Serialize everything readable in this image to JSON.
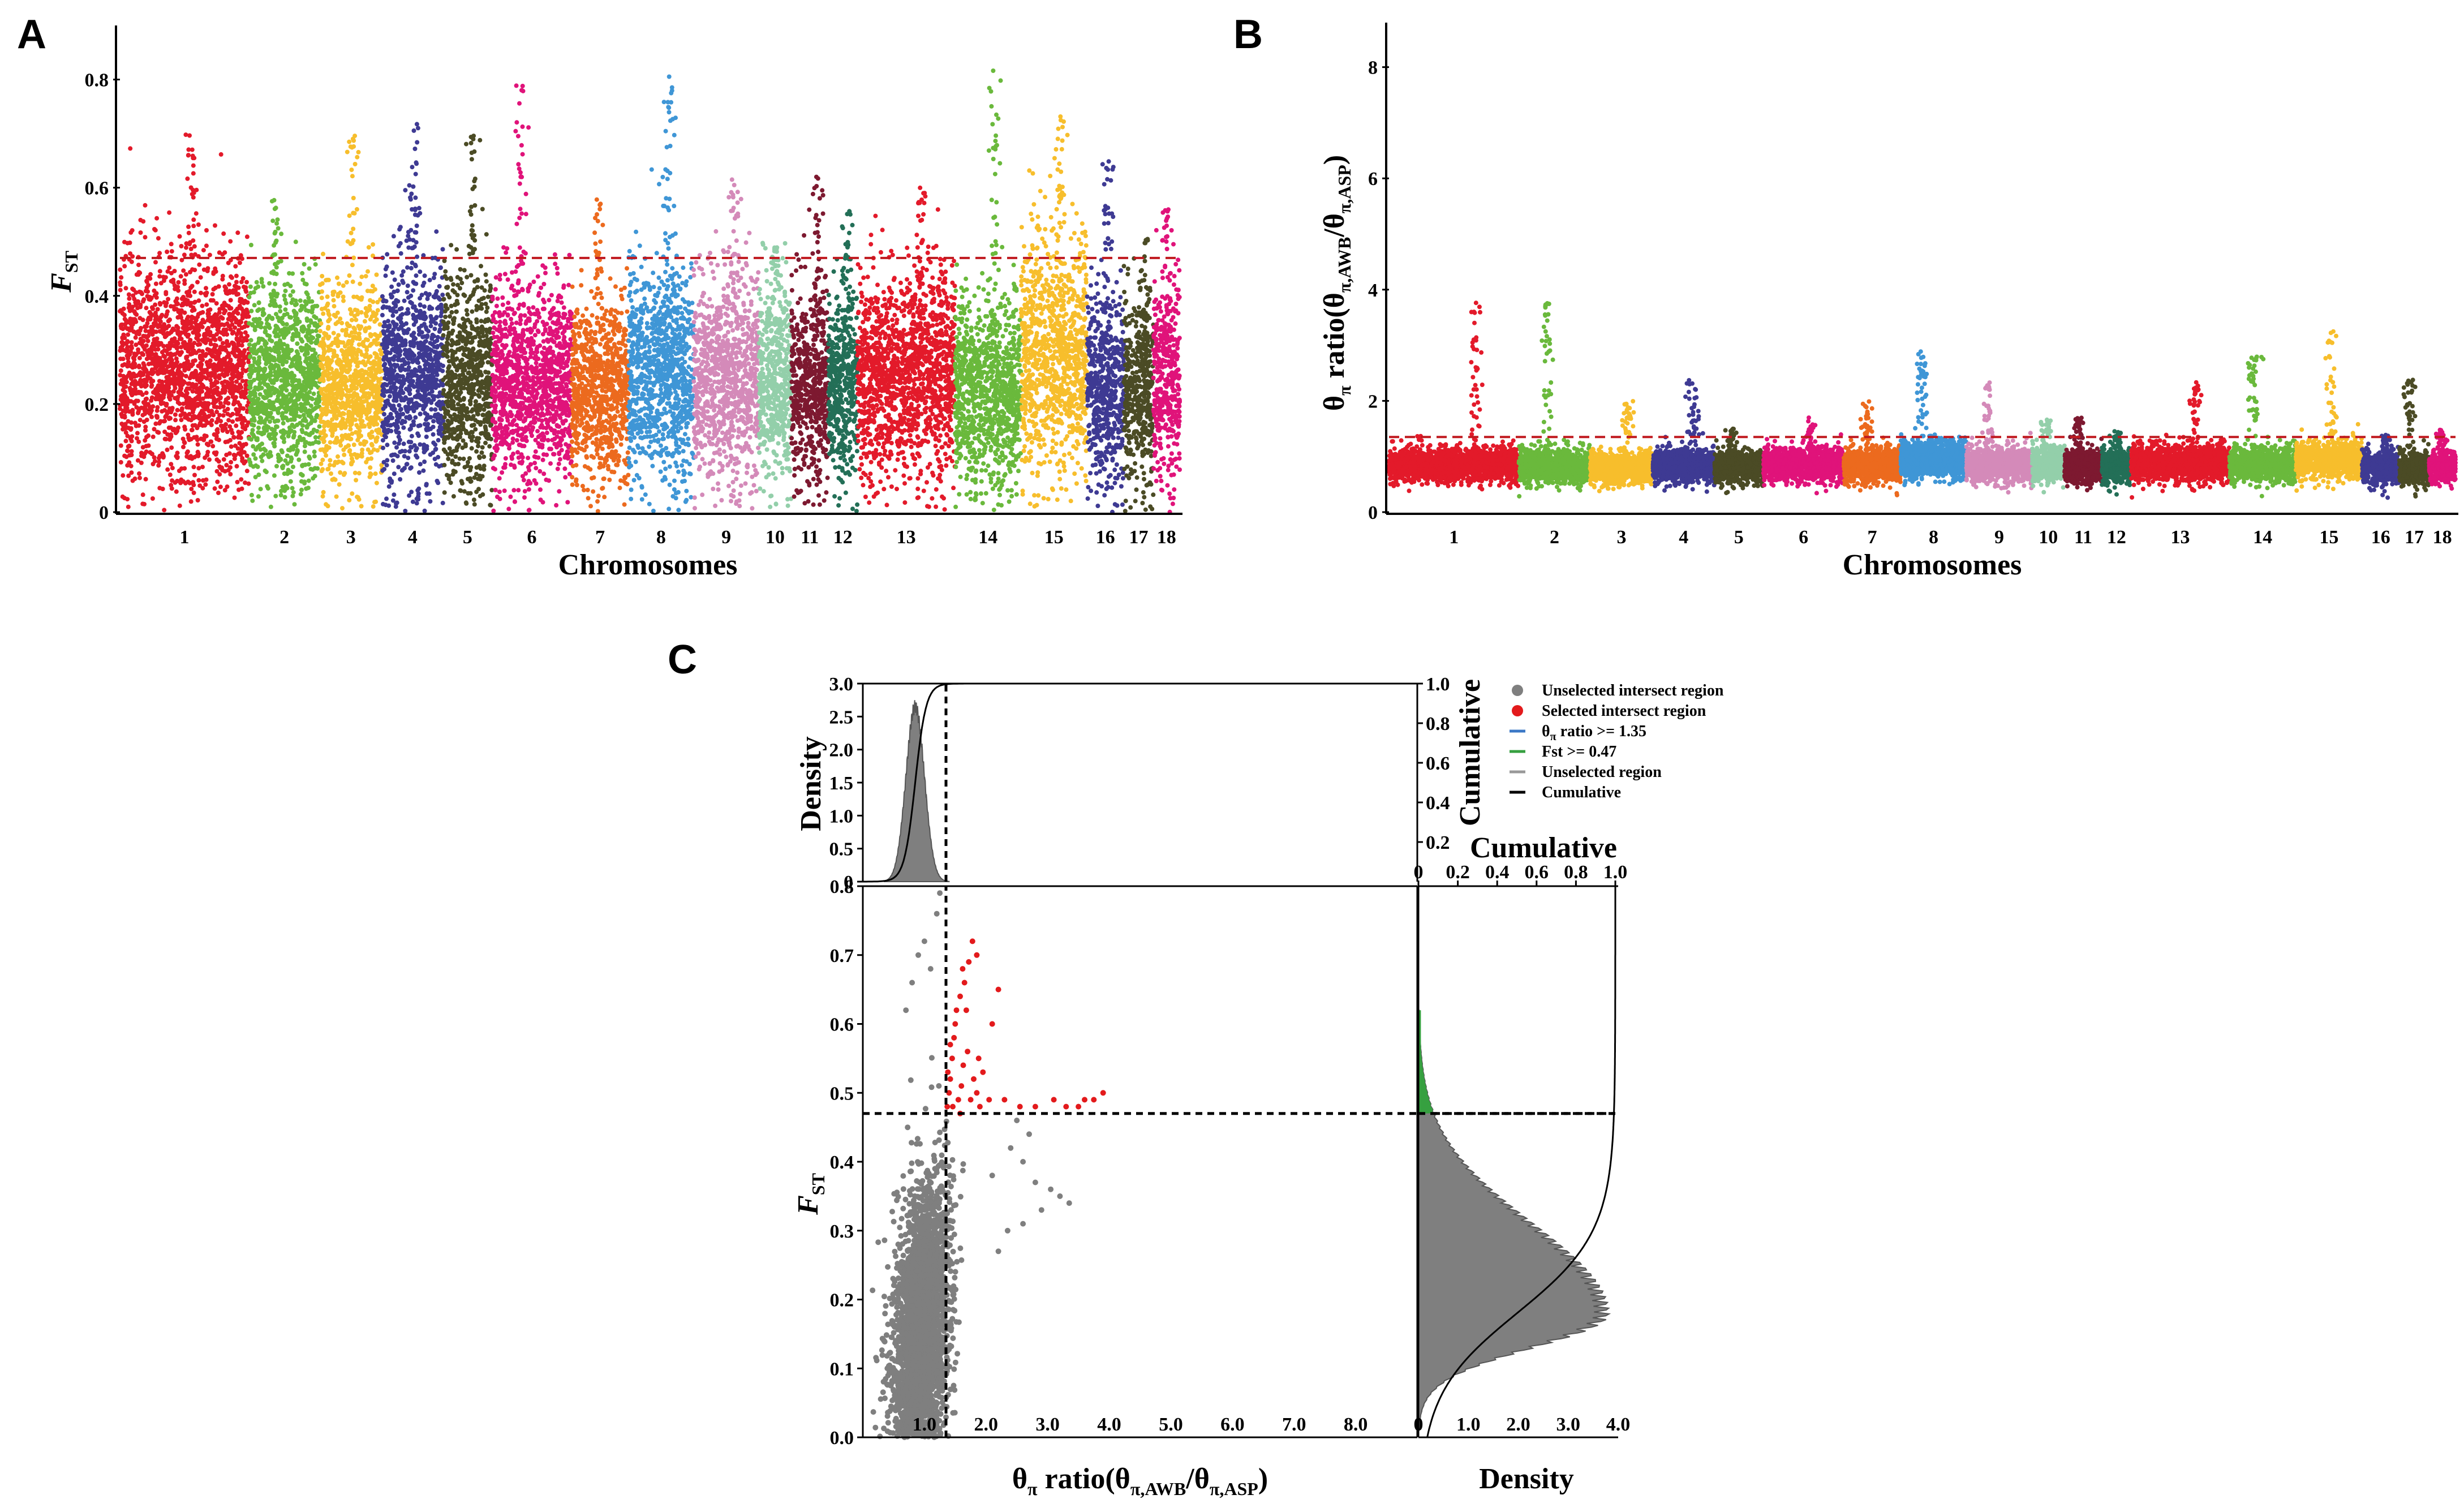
{
  "figure": {
    "panel_labels": [
      "A",
      "B",
      "C"
    ]
  },
  "colors": {
    "chromosome_palette": [
      "#e31a2a",
      "#6ab93c",
      "#f7be2c",
      "#3e3a93",
      "#4b4b25",
      "#e0137a",
      "#ec6a1e",
      "#3f96d6",
      "#d48ab9",
      "#93cfaa",
      "#7d1930",
      "#236f57"
    ],
    "threshold_line": "#c0191f",
    "gray": "#7f7f7f",
    "selected_red": "#e31a1c",
    "theta_blue": "#3b78c6",
    "fst_green": "#36a040"
  },
  "chart_data": [
    {
      "id": "A",
      "type": "scatter",
      "subtype": "manhattan",
      "xlabel": "Chromosomes",
      "ylabel_main": "F",
      "ylabel_sub": "ST",
      "ylim": [
        0,
        0.9
      ],
      "yticks": [
        "0",
        "0.2",
        "0.4",
        "0.6",
        "0.8"
      ],
      "threshold": 0.47,
      "chromosomes": [
        "1",
        "2",
        "3",
        "4",
        "5",
        "6",
        "7",
        "8",
        "9",
        "10",
        "11",
        "12",
        "13",
        "14",
        "15",
        "16",
        "17",
        "18"
      ],
      "chrom_lengths": [
        275,
        151,
        133,
        130,
        104,
        170,
        121,
        139,
        139,
        69,
        79,
        62,
        208,
        141,
        140,
        79,
        63,
        56
      ],
      "chrom_typical": [
        0.27,
        0.24,
        0.23,
        0.26,
        0.25,
        0.24,
        0.22,
        0.26,
        0.25,
        0.24,
        0.23,
        0.23,
        0.25,
        0.22,
        0.29,
        0.23,
        0.23,
        0.24
      ],
      "chrom_peak": [
        0.7,
        0.58,
        0.7,
        0.72,
        0.7,
        0.8,
        0.58,
        0.81,
        0.63,
        0.5,
        0.62,
        0.56,
        0.62,
        0.82,
        0.74,
        0.65,
        0.51,
        0.56
      ]
    },
    {
      "id": "B",
      "type": "scatter",
      "subtype": "manhattan",
      "xlabel": "Chromosomes",
      "ylabel_main": "θ",
      "ylabel_sub1": "π",
      "ylabel_mid": " ratio(θ",
      "ylabel_sub2": "π,AWB",
      "ylabel_mid2": "/θ",
      "ylabel_sub3": "π,ASP",
      "ylabel_end": ")",
      "ylim": [
        0,
        8.8
      ],
      "yticks": [
        "0",
        "2",
        "4",
        "6",
        "8"
      ],
      "threshold": 1.35,
      "chromosomes": [
        "1",
        "2",
        "3",
        "4",
        "5",
        "6",
        "7",
        "8",
        "9",
        "10",
        "11",
        "12",
        "13",
        "14",
        "15",
        "16",
        "17",
        "18"
      ],
      "chrom_lengths": [
        275,
        151,
        133,
        130,
        104,
        170,
        121,
        139,
        139,
        69,
        79,
        62,
        208,
        141,
        140,
        79,
        63,
        56
      ],
      "chrom_typical": [
        0.85,
        0.82,
        0.8,
        0.84,
        0.82,
        0.85,
        0.84,
        0.95,
        0.85,
        0.85,
        0.82,
        0.82,
        0.88,
        0.85,
        0.95,
        0.8,
        0.8,
        0.8
      ],
      "chrom_peak": [
        3.8,
        3.9,
        2.0,
        2.4,
        1.5,
        1.7,
        2.0,
        2.9,
        2.4,
        1.7,
        1.7,
        1.5,
        2.4,
        2.8,
        3.3,
        1.4,
        2.4,
        1.5
      ]
    },
    {
      "id": "C",
      "type": "scatter",
      "subtype": "joint-selection-plot",
      "scatter": {
        "xlabel_main": "θ",
        "xlabel_sub1": "π",
        "xlabel_mid": " ratio(θ",
        "xlabel_sub2": "π,AWB",
        "xlabel_mid2": "/θ",
        "xlabel_sub3": "π,ASP",
        "xlabel_end": ")",
        "ylabel_main": "F",
        "ylabel_sub": "ST",
        "xlim": [
          0,
          9.0
        ],
        "ylim": [
          0,
          0.8
        ],
        "xticks": [
          "1.0",
          "2.0",
          "3.0",
          "4.0",
          "5.0",
          "6.0",
          "7.0",
          "8.0"
        ],
        "yticks": [
          "0.0",
          "0.1",
          "0.2",
          "0.3",
          "0.4",
          "0.5",
          "0.6",
          "0.7",
          "0.8"
        ],
        "x_threshold": 1.35,
        "y_threshold": 0.47,
        "selected_points": [
          [
            1.37,
            0.48
          ],
          [
            1.4,
            0.5
          ],
          [
            1.42,
            0.52
          ],
          [
            1.45,
            0.55
          ],
          [
            1.48,
            0.58
          ],
          [
            1.5,
            0.6
          ],
          [
            1.42,
            0.57
          ],
          [
            1.38,
            0.53
          ],
          [
            1.55,
            0.49
          ],
          [
            1.6,
            0.51
          ],
          [
            1.63,
            0.54
          ],
          [
            1.7,
            0.56
          ],
          [
            1.75,
            0.49
          ],
          [
            1.8,
            0.52
          ],
          [
            1.85,
            0.5
          ],
          [
            1.9,
            0.48
          ],
          [
            1.52,
            0.62
          ],
          [
            1.58,
            0.64
          ],
          [
            1.65,
            0.66
          ],
          [
            1.72,
            0.69
          ],
          [
            1.78,
            0.72
          ],
          [
            1.85,
            0.7
          ],
          [
            1.62,
            0.68
          ],
          [
            1.68,
            0.62
          ],
          [
            1.95,
            0.53
          ],
          [
            2.05,
            0.49
          ],
          [
            2.1,
            0.6
          ],
          [
            2.2,
            0.65
          ],
          [
            2.3,
            0.49
          ],
          [
            2.55,
            0.48
          ],
          [
            2.8,
            0.48
          ],
          [
            3.1,
            0.49
          ],
          [
            3.3,
            0.48
          ],
          [
            3.6,
            0.49
          ],
          [
            3.75,
            0.49
          ],
          [
            3.9,
            0.5
          ],
          [
            3.5,
            0.48
          ],
          [
            1.46,
            0.48
          ],
          [
            1.58,
            0.47
          ],
          [
            1.88,
            0.55
          ]
        ],
        "gray_outliers": [
          [
            2.4,
            0.42
          ],
          [
            2.6,
            0.4
          ],
          [
            2.8,
            0.37
          ],
          [
            3.2,
            0.35
          ],
          [
            3.35,
            0.34
          ],
          [
            2.5,
            0.46
          ],
          [
            2.7,
            0.44
          ],
          [
            2.1,
            0.38
          ],
          [
            2.9,
            0.33
          ],
          [
            3.05,
            0.36
          ],
          [
            2.35,
            0.3
          ],
          [
            2.2,
            0.27
          ],
          [
            1.2,
            0.76
          ],
          [
            1.0,
            0.72
          ],
          [
            0.9,
            0.7
          ],
          [
            1.1,
            0.68
          ],
          [
            0.8,
            0.66
          ],
          [
            1.25,
            0.79
          ],
          [
            0.7,
            0.62
          ],
          [
            2.6,
            0.31
          ]
        ]
      },
      "top_density": {
        "ylabel": "Density",
        "ylim": [
          0,
          3.0
        ],
        "yticks": [
          "0",
          "0.5",
          "1.0",
          "1.5",
          "2.0",
          "2.5",
          "3.0"
        ],
        "peak_x": 0.85,
        "peak_density": 2.65,
        "sd": 0.15,
        "right_ylabel": "Cumulative",
        "right_ylim": [
          0,
          1.0
        ],
        "right_yticks": [
          "0.2",
          "0.4",
          "0.6",
          "0.8",
          "1.0"
        ]
      },
      "right_density": {
        "xlabel": "Density",
        "xlim": [
          0,
          4.0
        ],
        "xticks": [
          "0",
          "1.0",
          "2.0",
          "3.0",
          "4.0"
        ],
        "peak_y": 0.18,
        "peak_density": 3.7,
        "top_xlabel": "Cumulative",
        "top_xlim": [
          0,
          1.0
        ],
        "top_xticks": [
          "0",
          "0.2",
          "0.4",
          "0.6",
          "0.8",
          "1.0"
        ]
      },
      "legend": [
        {
          "label": "Unselected intersect region",
          "marker": "circle",
          "color": "#7f7f7f",
          "sub": ""
        },
        {
          "label": "Selected intersect region",
          "marker": "circle",
          "color": "#e31a1c",
          "sub": ""
        },
        {
          "label": " ratio >= 1.35",
          "prefix": "θ",
          "sub": "π",
          "marker": "line",
          "color": "#3b78c6"
        },
        {
          "label": "Fst  >= 0.47",
          "marker": "line",
          "color": "#36a040",
          "sub": ""
        },
        {
          "label": "Unselected region",
          "marker": "line",
          "color": "#999999",
          "sub": ""
        },
        {
          "label": "Cumulative",
          "marker": "line",
          "color": "#000000",
          "sub": ""
        }
      ]
    }
  ]
}
